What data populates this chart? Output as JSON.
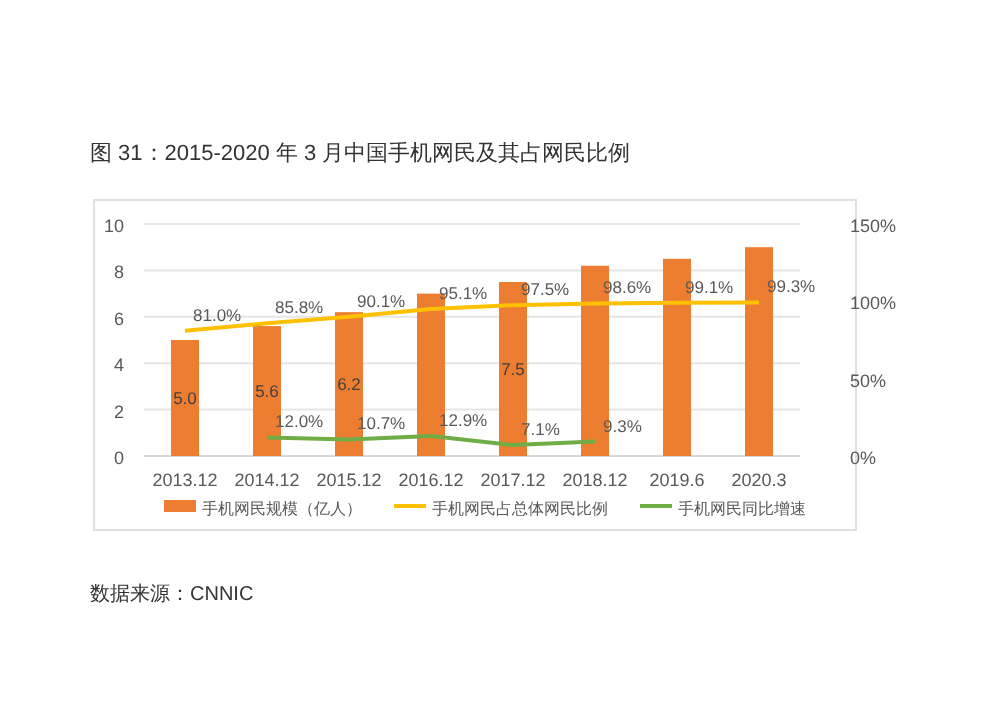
{
  "chart_data": {
    "type": "bar",
    "title": "图 31：2015-2020 年 3 月中国手机网民及其占网民比例",
    "categories": [
      "2013.12",
      "2014.12",
      "2015.12",
      "2016.12",
      "2017.12",
      "2018.12",
      "2019.6",
      "2020.3"
    ],
    "series": [
      {
        "name": "手机网民规模（亿人）",
        "color": "#ed7d31",
        "values": [
          5.0,
          5.6,
          6.2,
          7.0,
          7.5,
          8.2,
          8.5,
          9.0
        ],
        "value_labels": [
          "5.0",
          "5.6",
          "6.2",
          null,
          "7.5",
          null,
          null,
          null
        ]
      },
      {
        "name": "手机网民占总体网民比例",
        "type": "line",
        "axis": "y2",
        "color": "#ffc000",
        "values": [
          81.0,
          85.8,
          90.1,
          95.1,
          97.5,
          98.6,
          99.1,
          99.3
        ],
        "value_labels": [
          "81.0%",
          "85.8%",
          "90.1%",
          "95.1%",
          "97.5%",
          "98.6%",
          "99.1%",
          "99.3%"
        ]
      },
      {
        "name": "手机网民同比增速",
        "type": "line",
        "axis": "y2",
        "color": "#70ad47",
        "values": [
          null,
          12.0,
          10.7,
          12.9,
          7.1,
          9.3,
          null,
          null
        ],
        "value_labels": [
          null,
          "12.0%",
          "10.7%",
          "12.9%",
          "7.1%",
          "9.3%",
          null,
          null
        ]
      }
    ],
    "ylim": [
      0,
      10
    ],
    "yticks": [
      0,
      2,
      4,
      6,
      8,
      10
    ],
    "y2lim": [
      0,
      150
    ],
    "y2ticks": [
      {
        "value": 0,
        "label": "0%"
      },
      {
        "value": 50,
        "label": "50%"
      },
      {
        "value": 100,
        "label": "100%"
      },
      {
        "value": 150,
        "label": "150%"
      }
    ],
    "grid": "y",
    "legend": "bottom",
    "annotations": [
      "数据来源：CNNIC"
    ]
  }
}
